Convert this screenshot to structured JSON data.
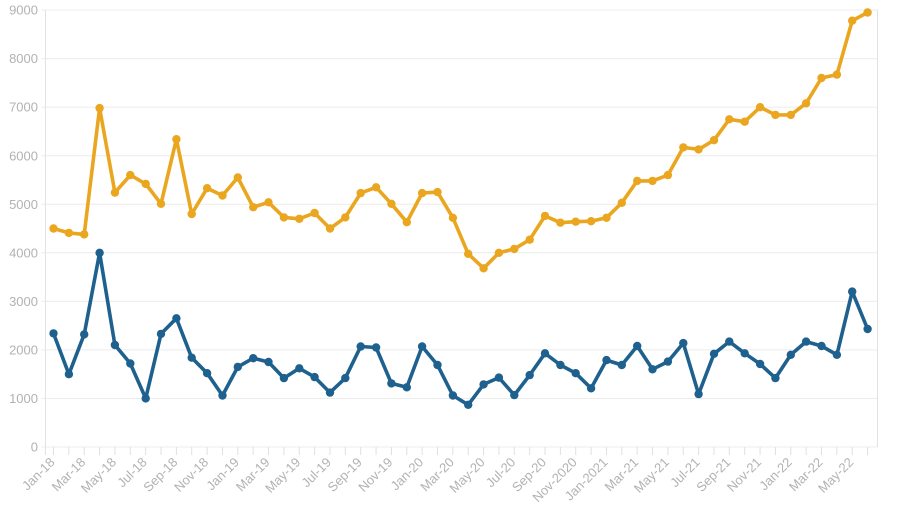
{
  "chart_data": {
    "type": "line",
    "title": "",
    "xlabel": "",
    "ylabel": "",
    "legend": "none",
    "grid": "horizontal",
    "x_axis": {
      "categories": [
        "Jan-18",
        "Feb-18",
        "Mar-18",
        "Apr-18",
        "May-18",
        "Jun-18",
        "Jul-18",
        "Aug-18",
        "Sep-18",
        "Oct-18",
        "Nov-18",
        "Dec-18",
        "Jan-19",
        "Feb-19",
        "Mar-19",
        "Apr-19",
        "May-19",
        "Jun-19",
        "Jul-19",
        "Aug-19",
        "Sep-19",
        "Oct-19",
        "Nov-19",
        "Dec-19",
        "Jan-20",
        "Feb-20",
        "Mar-20",
        "Apr-20",
        "May-20",
        "Jun-20",
        "Jul-20",
        "Aug-20",
        "Sep-20",
        "Oct-20",
        "Nov-20",
        "Dec-20",
        "Jan-21",
        "Feb-21",
        "Mar-21",
        "Apr-21",
        "May-21",
        "Jun-21",
        "Jul-21",
        "Aug-21",
        "Sep-21",
        "Oct-21",
        "Nov-21",
        "Dec-21",
        "Jan-22",
        "Feb-22",
        "Mar-22",
        "Apr-22",
        "May-22",
        "Jun-22"
      ],
      "shown_tick_labels": [
        "Jan-18",
        "Mar-18",
        "May-18",
        "Jul-18",
        "Sep-18",
        "Nov-18",
        "Jan-19",
        "Mar-19",
        "May-19",
        "Jul-19",
        "Sep-19",
        "Nov-19",
        "Jan-20",
        "Mar-20",
        "May-20",
        "Jul-20",
        "Sep-20",
        "Nov-2020",
        "Jan-2021",
        "Mar-21",
        "May-21",
        "Jul-21",
        "Sep-21",
        "Nov-21",
        "Jan-22",
        "Mar-22",
        "May-22"
      ],
      "tick_every": 2,
      "label_rotation_deg": 45
    },
    "y_axis": {
      "min": 0,
      "max": 9000,
      "tick_interval": 1000,
      "tick_labels": [
        "0",
        "1000",
        "2000",
        "3000",
        "4000",
        "5000",
        "6000",
        "7000",
        "8000",
        "9000"
      ]
    },
    "series": [
      {
        "name": "yellow-series",
        "color": "#EAA61F",
        "values": [
          4500,
          4410,
          4380,
          6980,
          5240,
          5600,
          5420,
          5010,
          6340,
          4800,
          5330,
          5180,
          5550,
          4940,
          5040,
          4730,
          4700,
          4820,
          4500,
          4730,
          5230,
          5350,
          5010,
          4630,
          5230,
          5250,
          4720,
          3980,
          3680,
          4000,
          4080,
          4270,
          4760,
          4620,
          4640,
          4650,
          4720,
          5030,
          5480,
          5480,
          5600,
          6170,
          6130,
          6320,
          6750,
          6700,
          7000,
          6840,
          6840,
          7080,
          7600,
          7670,
          8780,
          8950
        ]
      },
      {
        "name": "blue-series",
        "color": "#1F618E",
        "values": [
          2340,
          1500,
          2320,
          4000,
          2100,
          1720,
          1000,
          2330,
          2650,
          1840,
          1520,
          1060,
          1650,
          1830,
          1750,
          1420,
          1620,
          1440,
          1120,
          1420,
          2070,
          2050,
          1310,
          1230,
          2070,
          1690,
          1060,
          870,
          1290,
          1430,
          1070,
          1480,
          1930,
          1690,
          1520,
          1210,
          1790,
          1690,
          2080,
          1600,
          1760,
          2140,
          1090,
          1920,
          2170,
          1930,
          1710,
          1420,
          1900,
          2170,
          2080,
          1900,
          3200,
          2430
        ]
      }
    ]
  },
  "style": {
    "background": "#FFFFFF",
    "grid_color": "#ECECEC",
    "axis_edge_color": "#E2E2E2",
    "tick_color": "#E0E0E0",
    "axis_label_color": "#B2B2B2"
  }
}
